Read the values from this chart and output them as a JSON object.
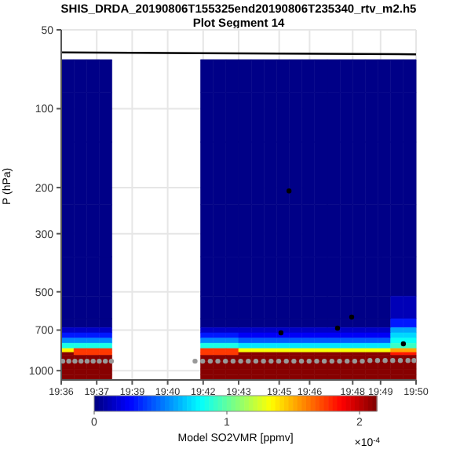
{
  "chart_data": {
    "type": "heatmap",
    "title": "SHIS_DRDA_20190806T155325end20190806T235340_rtv_m2.h5",
    "subtitle": "Plot Segment 14",
    "ylabel": "P (hPa)",
    "clabel": "Model SO2VMR [ppmv]",
    "annotations": [
      "×10$^{-4}$"
    ],
    "x": [
      19.6042,
      19.6125,
      19.6208,
      19.6292,
      19.6375,
      19.6458,
      19.6542,
      19.6625,
      19.6708,
      19.6792,
      19.6875,
      19.6958,
      19.7042,
      19.7125,
      19.7208,
      19.7292,
      19.7375,
      19.7458,
      19.7542,
      19.7625,
      19.7708,
      19.7792,
      19.7875,
      19.7958,
      19.8042,
      19.8125,
      19.8208,
      19.8292
    ],
    "y": [
      75,
      100,
      180,
      300,
      450,
      600,
      669,
      701,
      734,
      768,
      804,
      842,
      862,
      885,
      960,
      1012,
      1060
    ],
    "cells": [
      [
        0,
        0,
        0,
        0,
        null,
        null,
        null,
        null,
        null,
        null,
        null,
        0,
        0,
        0,
        0,
        0,
        0,
        0,
        0,
        0,
        0,
        0,
        0,
        0,
        0,
        0,
        0,
        0
      ],
      [
        0,
        0,
        0,
        0,
        null,
        null,
        null,
        null,
        null,
        null,
        null,
        0,
        0,
        0,
        0,
        0,
        0,
        0,
        0,
        0,
        0,
        0,
        0,
        0,
        0,
        0,
        0,
        0
      ],
      [
        0,
        0,
        0,
        0,
        null,
        null,
        null,
        null,
        null,
        null,
        null,
        0,
        0,
        0,
        0,
        0,
        0,
        0,
        0,
        0,
        0,
        0,
        0,
        0,
        0,
        0,
        0,
        0
      ],
      [
        0,
        0,
        0,
        0,
        null,
        null,
        null,
        null,
        null,
        null,
        null,
        0,
        0,
        0,
        0,
        0,
        0,
        0,
        0,
        0,
        0,
        0,
        0,
        0,
        0,
        0,
        0,
        0
      ],
      [
        0,
        0,
        0,
        0,
        null,
        null,
        null,
        null,
        null,
        null,
        null,
        0,
        0,
        0,
        0,
        0,
        0,
        0,
        0,
        0,
        0,
        0,
        0,
        0,
        0,
        0,
        0,
        0
      ],
      [
        0,
        0,
        0,
        0,
        null,
        null,
        null,
        null,
        null,
        null,
        null,
        0,
        0,
        0,
        0,
        0,
        0,
        0,
        0,
        0,
        0,
        0,
        0,
        0,
        0,
        0,
        0.1,
        0.1
      ],
      [
        0,
        0,
        0,
        0,
        null,
        null,
        null,
        null,
        null,
        null,
        null,
        0,
        0,
        0,
        0,
        0,
        0,
        0,
        0,
        0,
        0,
        0,
        0,
        0,
        0,
        0,
        0.3,
        0.3
      ],
      [
        0.15,
        0.15,
        0.15,
        0.15,
        null,
        null,
        null,
        null,
        null,
        null,
        null,
        0.15,
        0.15,
        0.15,
        0.15,
        0.15,
        0.15,
        0.15,
        0.15,
        0.15,
        0.15,
        0.15,
        0.15,
        0.15,
        0.15,
        0.15,
        0.6,
        0.6
      ],
      [
        0.3,
        0.3,
        0.3,
        0.3,
        null,
        null,
        null,
        null,
        null,
        null,
        null,
        0.3,
        0.3,
        0.3,
        0.25,
        0.25,
        0.25,
        0.25,
        0.25,
        0.25,
        0.25,
        0.25,
        0.25,
        0.25,
        0.25,
        0.25,
        0.7,
        0.7
      ],
      [
        0.55,
        0.55,
        0.55,
        0.55,
        null,
        null,
        null,
        null,
        null,
        null,
        null,
        0.55,
        0.55,
        0.55,
        0.45,
        0.45,
        0.45,
        0.45,
        0.45,
        0.45,
        0.45,
        0.45,
        0.45,
        0.45,
        0.45,
        0.45,
        0.8,
        0.8
      ],
      [
        0.85,
        0.85,
        0.85,
        0.85,
        null,
        null,
        null,
        null,
        null,
        null,
        null,
        0.85,
        0.85,
        0.85,
        0.75,
        0.75,
        0.75,
        0.75,
        0.75,
        0.75,
        0.75,
        0.75,
        0.75,
        0.75,
        0.75,
        0.75,
        0.9,
        0.9
      ],
      [
        1.35,
        1.75,
        1.75,
        1.75,
        null,
        null,
        null,
        null,
        null,
        null,
        null,
        1.75,
        1.75,
        1.75,
        1.3,
        1.3,
        1.3,
        1.3,
        1.3,
        1.3,
        1.3,
        1.3,
        1.3,
        1.3,
        1.3,
        1.3,
        1.5,
        1.5
      ],
      [
        2.1,
        1.75,
        1.75,
        1.75,
        null,
        null,
        null,
        null,
        null,
        null,
        null,
        1.75,
        1.75,
        1.75,
        2.1,
        2.1,
        2.1,
        2.1,
        2.1,
        2.1,
        2.1,
        2.1,
        2.1,
        2.1,
        2.1,
        2.1,
        1.8,
        1.8
      ],
      [
        2.1,
        2.1,
        2.1,
        2.1,
        null,
        null,
        null,
        null,
        null,
        null,
        null,
        2.1,
        2.1,
        2.1,
        2.1,
        2.1,
        2.1,
        2.1,
        2.1,
        2.1,
        2.1,
        2.1,
        2.1,
        2.1,
        2.1,
        2.1,
        2.1,
        2.1
      ],
      [
        2.1,
        2.1,
        2.1,
        2.1,
        null,
        null,
        null,
        null,
        null,
        null,
        null,
        2.1,
        2.1,
        2.1,
        2.1,
        2.1,
        2.1,
        2.1,
        2.1,
        2.1,
        2.1,
        2.1,
        2.1,
        2.1,
        2.1,
        2.1,
        2.1,
        2.1
      ],
      [
        2.1,
        2.1,
        2.1,
        2.1,
        null,
        null,
        null,
        null,
        null,
        null,
        null,
        2.1,
        2.1,
        2.1,
        2.1,
        2.1,
        2.1,
        2.1,
        2.1,
        2.1,
        2.1,
        2.1,
        2.1,
        2.1,
        2.1,
        2.1,
        2.1,
        2.1
      ],
      [
        2.1,
        2.1,
        2.1,
        2.1,
        null,
        null,
        null,
        null,
        null,
        null,
        null,
        2.1,
        2.1,
        2.1,
        2.1,
        2.1,
        2.1,
        2.1,
        2.1,
        2.1,
        2.1,
        2.1,
        2.1,
        2.1,
        2.1,
        2.1,
        2.1,
        2.1
      ]
    ],
    "clim": [
      0,
      2.13
    ],
    "cticks": [
      0,
      1,
      2
    ],
    "series": [
      {
        "type": "scatter",
        "color": "#999999",
        "marker": "circle",
        "x": [
          19.601,
          19.605,
          19.609,
          19.613,
          19.617,
          19.621,
          19.625,
          19.629,
          19.633,
          19.688,
          19.693,
          19.698,
          19.703,
          19.708,
          19.713,
          19.718,
          19.723,
          19.728,
          19.733,
          19.738,
          19.743,
          19.748,
          19.753,
          19.758,
          19.763,
          19.768,
          19.773,
          19.778,
          19.783,
          19.788,
          19.793,
          19.798,
          19.803,
          19.808,
          19.813,
          19.818,
          19.823,
          19.828,
          19.832
        ],
        "values": [
          920,
          920,
          920,
          920,
          920,
          920,
          920,
          920,
          920,
          920,
          920,
          920,
          920,
          920,
          920,
          920,
          920,
          920,
          920,
          920,
          920,
          920,
          920,
          920,
          920,
          920,
          920,
          920,
          920,
          920,
          920,
          920,
          915,
          915,
          915,
          915,
          915,
          915,
          915
        ]
      },
      {
        "type": "scatter",
        "color": "#000000",
        "marker": "circle",
        "x": [
          19.7445,
          19.7498,
          19.7817,
          19.791,
          19.825
        ],
        "values": [
          717,
          206,
          688,
          624,
          790
        ]
      },
      {
        "type": "line",
        "color": "#000000",
        "marker": "none",
        "x": [
          19.6,
          19.8333
        ],
        "values": [
          61,
          62
        ]
      }
    ],
    "xlim": [
      19.6,
      19.833333
    ],
    "xticks": [
      {
        "value": 19.6,
        "label": "19:36"
      },
      {
        "value": 19.623333,
        "label": "19:37"
      },
      {
        "value": 19.646667,
        "label": "19:39"
      },
      {
        "value": 19.67,
        "label": "19:40"
      },
      {
        "value": 19.693333,
        "label": "19:42"
      },
      {
        "value": 19.716667,
        "label": "19:43"
      },
      {
        "value": 19.743333,
        "label": "19:45"
      },
      {
        "value": 19.763333,
        "label": "19:46"
      },
      {
        "value": 19.791667,
        "label": "19:48"
      },
      {
        "value": 19.81,
        "label": "19:49"
      },
      {
        "value": 19.833333,
        "label": "19:50"
      }
    ],
    "ylim": [
      1085,
      50
    ],
    "yticks": [
      50,
      100,
      200,
      300,
      500,
      700,
      1000
    ],
    "log": "y",
    "grid": true
  }
}
